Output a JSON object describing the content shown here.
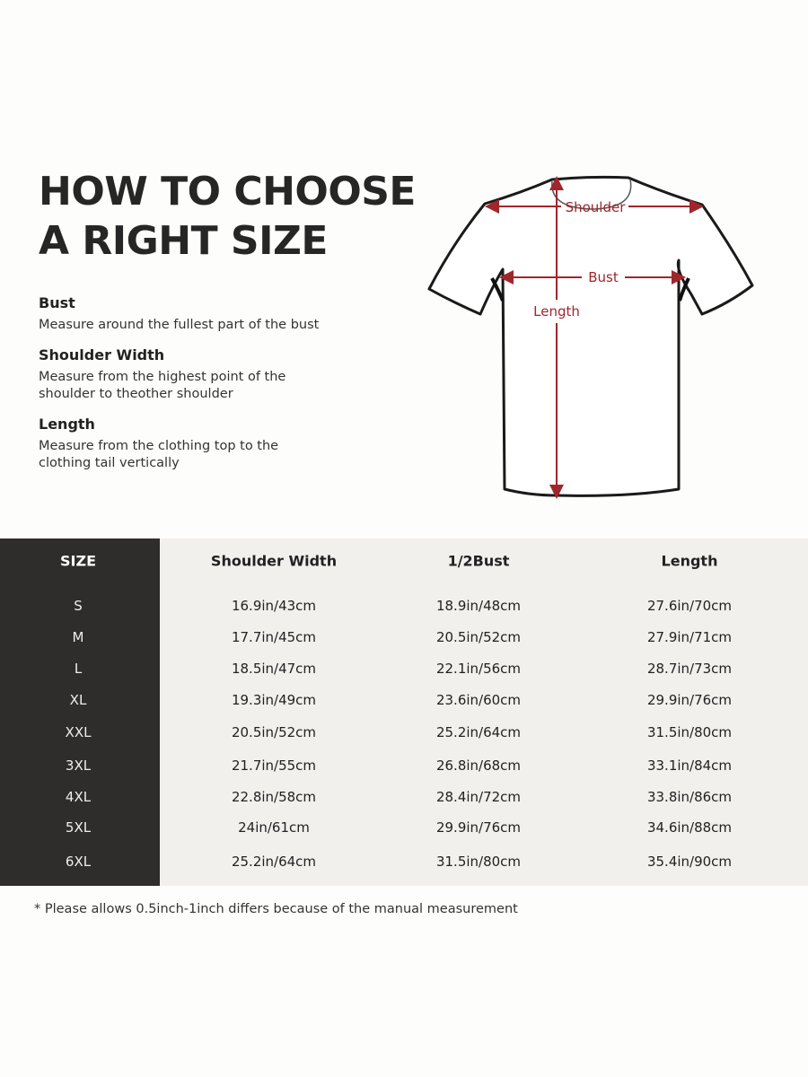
{
  "title": {
    "line1": "HOW TO CHOOSE",
    "line2": "A RIGHT SIZE"
  },
  "guide": [
    {
      "heading": "Bust",
      "lines": [
        "Measure around the fullest part of the bust"
      ]
    },
    {
      "heading": "Shoulder Width",
      "lines": [
        "Measure from the highest point of the",
        "shoulder to theother shoulder"
      ]
    },
    {
      "heading": "Length",
      "lines": [
        "Measure from the clothing top to the",
        "clothing tail vertically"
      ]
    }
  ],
  "diagram": {
    "shoulder": "Shoulder",
    "bust": "Bust",
    "length": "Length",
    "accent_color": "#a0262c"
  },
  "table": {
    "headers": [
      "SIZE",
      "Shoulder Width",
      "1/2Bust",
      "Length"
    ],
    "rows": [
      [
        "S",
        "16.9in/43cm",
        "18.9in/48cm",
        "27.6in/70cm"
      ],
      [
        "M",
        "17.7in/45cm",
        "20.5in/52cm",
        "27.9in/71cm"
      ],
      [
        "L",
        "18.5in/47cm",
        "22.1in/56cm",
        "28.7in/73cm"
      ],
      [
        "XL",
        "19.3in/49cm",
        "23.6in/60cm",
        "29.9in/76cm"
      ],
      [
        "XXL",
        "20.5in/52cm",
        "25.2in/64cm",
        "31.5in/80cm"
      ],
      [
        "3XL",
        "21.7in/55cm",
        "26.8in/68cm",
        "33.1in/84cm"
      ],
      [
        "4XL",
        "22.8in/58cm",
        "28.4in/72cm",
        "33.8in/86cm"
      ],
      [
        "5XL",
        "24in/61cm",
        "29.9in/76cm",
        "34.6in/88cm"
      ],
      [
        "6XL",
        "25.2in/64cm",
        "31.5in/80cm",
        "35.4in/90cm"
      ]
    ]
  },
  "note": "* Please allows 0.5inch-1inch differs because of the  manual measurement"
}
